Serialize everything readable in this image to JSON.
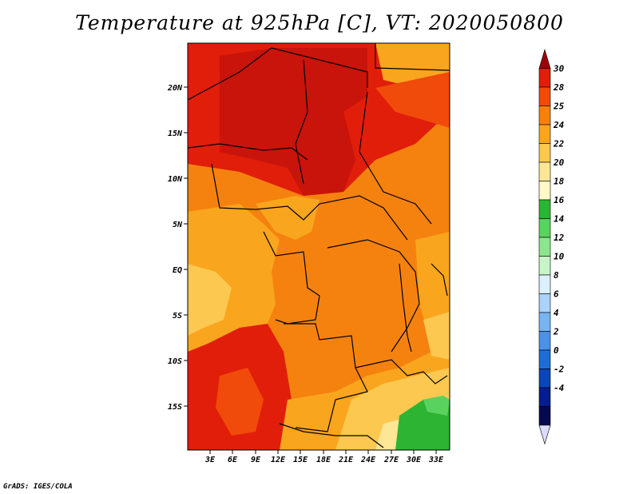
{
  "title": "Temperature at 925hPa [C], VT: 2020050800",
  "credit": "GrADS: IGES/COLA",
  "lat_labels": [
    "20N",
    "15N",
    "10N",
    "5N",
    "EQ",
    "5S",
    "10S",
    "15S"
  ],
  "lon_labels": [
    "3E",
    "6E",
    "9E",
    "12E",
    "15E",
    "18E",
    "21E",
    "24E",
    "27E",
    "30E",
    "33E"
  ],
  "colorbar": {
    "labels": [
      "30",
      "28",
      "25",
      "24",
      "22",
      "20",
      "18",
      "16",
      "14",
      "12",
      "10",
      "8",
      "6",
      "4",
      "2",
      "0",
      "-2",
      "-4"
    ],
    "colors": [
      "#a0000a",
      "#e11e0a",
      "#f04b0a",
      "#f5820f",
      "#faa51e",
      "#fcc850",
      "#fde696",
      "#fff8c8",
      "#2db432",
      "#5ad25f",
      "#8ce68c",
      "#c8f5c8",
      "#dcf0ff",
      "#aad2fa",
      "#78b4f0",
      "#4b91e6",
      "#1e6ed2",
      "#0a46b4",
      "#051e8c",
      "#050a50",
      "#dcdcfa"
    ]
  }
}
